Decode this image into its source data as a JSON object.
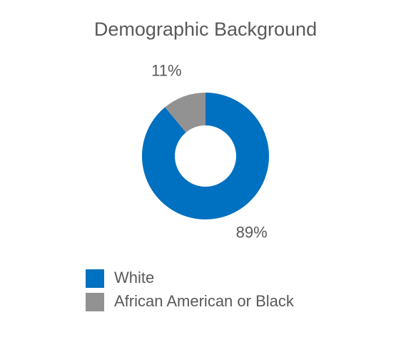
{
  "chart_data": {
    "type": "donut",
    "title": "Demographic Background",
    "categories": [
      "White",
      "African American or Black"
    ],
    "values": [
      89,
      11
    ],
    "value_labels": [
      "89%",
      "11%"
    ],
    "colors": [
      "#0070c0",
      "#929292"
    ]
  }
}
